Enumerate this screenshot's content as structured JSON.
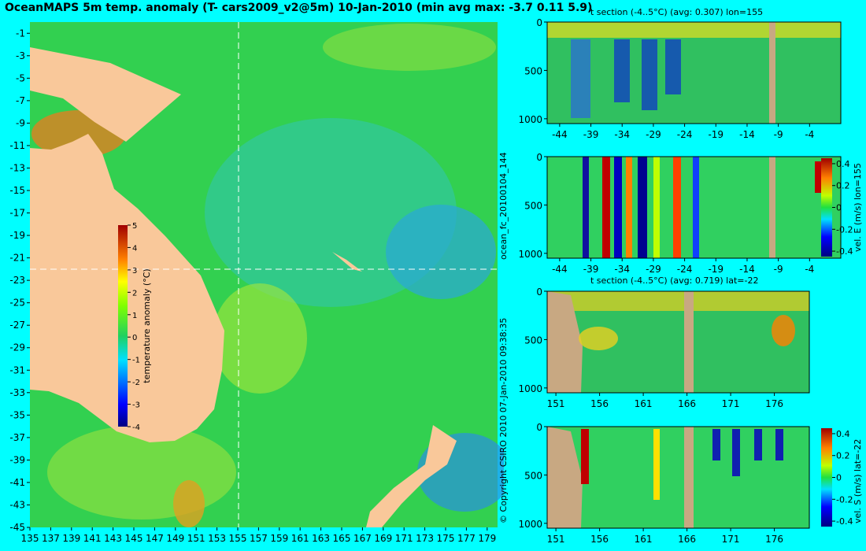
{
  "page": {
    "title": "OceanMAPS 5m temp. anomaly (T- cars2009_v2@5m) 10-Jan-2010 (min avg max: -3.7 0.11 5.9)",
    "copyright": "© Copyright CSIRO 2010   07-Jan-2010 09:38:35",
    "run_label": "ocean_fc_20100104_144",
    "background_color": "#00ffff"
  },
  "chart_data": [
    {
      "type": "heatmap",
      "id": "map",
      "title": "OceanMAPS 5m temp. anomaly (T- cars2009_v2@5m) 10-Jan-2010 (min avg max: -3.7 0.11 5.9)",
      "x_ticks": [
        "135",
        "137",
        "139",
        "141",
        "143",
        "145",
        "147",
        "149",
        "151",
        "153",
        "155",
        "157",
        "159",
        "161",
        "163",
        "165",
        "167",
        "169",
        "171",
        "173",
        "175",
        "177",
        "179"
      ],
      "y_ticks": [
        "-1",
        "-3",
        "-5",
        "-7",
        "-9",
        "-11",
        "-13",
        "-15",
        "-17",
        "-19",
        "-21",
        "-23",
        "-25",
        "-27",
        "-29",
        "-31",
        "-33",
        "-35",
        "-37",
        "-39",
        "-41",
        "-43",
        "-45"
      ],
      "xlim": [
        135,
        180
      ],
      "ylim": [
        -45,
        0
      ],
      "crosshair": {
        "lon": 155,
        "lat": -22
      },
      "colorbar": {
        "label": "temperature anomaly (°C)",
        "ticks": [
          "5",
          "4",
          "3",
          "2",
          "1",
          "0",
          "-1",
          "-2",
          "-3",
          "-4"
        ],
        "range": [
          -4,
          5
        ]
      },
      "stats": {
        "min": -3.7,
        "avg": 0.11,
        "max": 5.9
      },
      "land_color": "#f9c89a"
    },
    {
      "type": "heatmap",
      "id": "tsec_lon",
      "title": "t section (-4..5°C) (avg: 0.307) lon=155",
      "x_ticks": [
        "-44",
        "-39",
        "-34",
        "-29",
        "-24",
        "-19",
        "-14",
        "-9",
        "-4"
      ],
      "y_ticks": [
        "0",
        "500",
        "1000"
      ],
      "xlim": [
        -46,
        1
      ],
      "ylim": [
        1050,
        0
      ]
    },
    {
      "type": "heatmap",
      "id": "vel_lon",
      "title": "",
      "x_ticks": [
        "-44",
        "-39",
        "-34",
        "-29",
        "-24",
        "-19",
        "-14",
        "-9",
        "-4"
      ],
      "y_ticks": [
        "0",
        "500",
        "1000"
      ],
      "xlim": [
        -46,
        1
      ],
      "ylim": [
        1050,
        0
      ],
      "colorbar": {
        "label": "vel. E (m/s) lon=155",
        "ticks": [
          "0.4",
          "0.2",
          "0",
          "-0.2",
          "-0.4"
        ],
        "range": [
          -0.45,
          0.45
        ]
      }
    },
    {
      "type": "heatmap",
      "id": "tsec_lat",
      "title": "t section (-4..5°C) (avg: 0.719) lat=-22",
      "x_ticks": [
        "151",
        "156",
        "161",
        "166",
        "171",
        "176"
      ],
      "y_ticks": [
        "0",
        "500",
        "1000"
      ],
      "xlim": [
        150,
        180
      ],
      "ylim": [
        1050,
        0
      ]
    },
    {
      "type": "heatmap",
      "id": "vel_lat",
      "title": "",
      "x_ticks": [
        "151",
        "156",
        "161",
        "166",
        "171",
        "176"
      ],
      "y_ticks": [
        "0",
        "500",
        "1000"
      ],
      "xlim": [
        150,
        180
      ],
      "ylim": [
        1050,
        0
      ],
      "colorbar": {
        "label": "vel. S (m/s) lat=-22",
        "ticks": [
          "0.4",
          "0.2",
          "0",
          "-0.2",
          "-0.4"
        ],
        "range": [
          -0.45,
          0.45
        ]
      }
    }
  ]
}
